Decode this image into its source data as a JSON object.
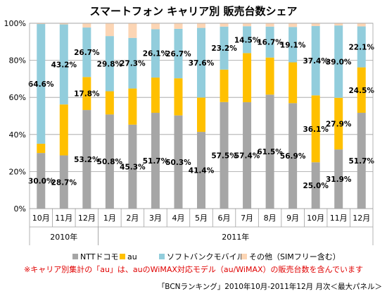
{
  "chart_data": {
    "type": "bar",
    "stacked": true,
    "percent": true,
    "title": "スマートフォン キャリア別 販売台数シェア",
    "categories": [
      "10月",
      "11月",
      "12月",
      "1月",
      "2月",
      "3月",
      "4月",
      "5月",
      "6月",
      "7月",
      "8月",
      "9月",
      "10月",
      "11月",
      "12月"
    ],
    "year_groups": [
      {
        "label": "2010年",
        "start": 0,
        "end": 2
      },
      {
        "label": "2011年",
        "start": 3,
        "end": 14
      }
    ],
    "ylim": [
      0,
      100
    ],
    "yticks": [
      "0%",
      "20%",
      "40%",
      "60%",
      "80%",
      "100%"
    ],
    "grid": true,
    "legend_position": "bottom",
    "series": [
      {
        "name": "NTTドコモ",
        "color": "#a6a6a6",
        "values": [
          30.0,
          28.7,
          53.2,
          50.8,
          45.3,
          51.7,
          50.3,
          41.4,
          57.5,
          57.4,
          61.5,
          56.9,
          25.0,
          31.9,
          51.7
        ],
        "labels": [
          "30.0%",
          "28.7%",
          "53.2%",
          "50.8%",
          "45.3%",
          "51.7%",
          "50.3%",
          "41.4%",
          "57.5%",
          "57.4%",
          "61.5%",
          "56.9%",
          "25.0%",
          "31.9%",
          "51.7%"
        ]
      },
      {
        "name": "au",
        "color": "#ffc000",
        "values": [
          5.0,
          27.5,
          17.8,
          12.5,
          19.5,
          19.0,
          20.0,
          18.5,
          17.5,
          26.5,
          20.0,
          22.0,
          36.1,
          27.9,
          24.5
        ],
        "labels": [
          "",
          "",
          "17.8%",
          "",
          "",
          "",
          "",
          "",
          "",
          "",
          "",
          "",
          "36.1%",
          "27.9%",
          "24.5%"
        ]
      },
      {
        "name": "ソフトバンクモバイル",
        "color": "#92cddc",
        "values": [
          64.6,
          43.2,
          26.7,
          29.8,
          27.3,
          26.1,
          26.7,
          37.6,
          23.2,
          14.5,
          16.7,
          19.1,
          37.4,
          39.0,
          22.1
        ],
        "labels": [
          "64.6%",
          "43.2%",
          "26.7%",
          "29.8%",
          "27.3%",
          "26.1%",
          "26.7%",
          "37.6%",
          "23.2%",
          "14.5%",
          "16.7%",
          "19.1%",
          "37.4%",
          "39.0%",
          "22.1%"
        ]
      },
      {
        "name": "その他（SIMフリー含む）",
        "color": "#fcd5b4",
        "values": [
          0.4,
          0.6,
          2.3,
          6.9,
          7.9,
          3.2,
          3.0,
          2.5,
          1.8,
          1.6,
          1.8,
          2.0,
          1.5,
          1.2,
          1.7
        ],
        "labels": [
          "",
          "",
          "",
          "",
          "",
          "",
          "",
          "",
          "",
          "",
          "",
          "",
          "",
          "",
          ""
        ]
      }
    ]
  },
  "note": "※キャリア別集計の「au」は、auのWiMAX対応モデル（au/WiMAX）の販売台数を含んでいます",
  "source": "「BCNランキング」2010年10月-2011年12月 月次＜最大パネル＞"
}
